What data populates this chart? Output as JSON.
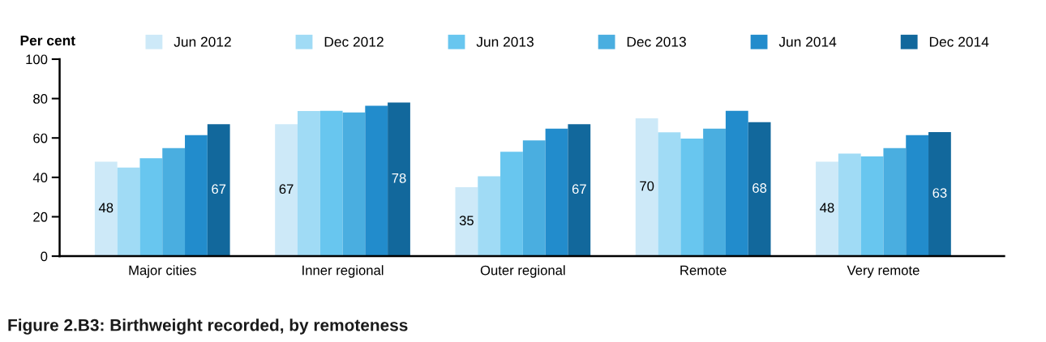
{
  "chart_data": {
    "type": "bar",
    "title": "Figure 2.B3: Birthweight recorded, by remoteness",
    "ylabel": "Per cent",
    "categories": [
      "Major cities",
      "Inner regional",
      "Outer regional",
      "Remote",
      "Very remote"
    ],
    "series": [
      {
        "name": "Jun 2012",
        "color": "#cde9f8",
        "values": [
          48,
          67,
          35,
          70,
          48
        ],
        "value_labels": [
          "48",
          "67",
          "35",
          "70",
          "48"
        ]
      },
      {
        "name": "Dec 2012",
        "color": "#a0dbf5",
        "values": [
          45,
          73.7,
          40.6,
          62.9,
          52.1
        ]
      },
      {
        "name": "Jun 2013",
        "color": "#68c6ef",
        "values": [
          49.7,
          73.8,
          53,
          59.7,
          50.6
        ]
      },
      {
        "name": "Dec 2013",
        "color": "#4aaee0",
        "values": [
          54.8,
          73,
          58.8,
          64.7,
          54.8
        ]
      },
      {
        "name": "Jun 2014",
        "color": "#228ccc",
        "values": [
          61.4,
          76.3,
          64.7,
          73.8,
          61.4
        ]
      },
      {
        "name": "Dec 2014",
        "color": "#12689c",
        "values": [
          67,
          78,
          67,
          68,
          63
        ],
        "value_labels": [
          "67",
          "78",
          "67",
          "68",
          "63"
        ]
      }
    ],
    "ylim": [
      0,
      100
    ],
    "yticks": [
      0,
      20,
      40,
      60,
      80,
      100
    ],
    "grid": false,
    "legend": "top"
  }
}
